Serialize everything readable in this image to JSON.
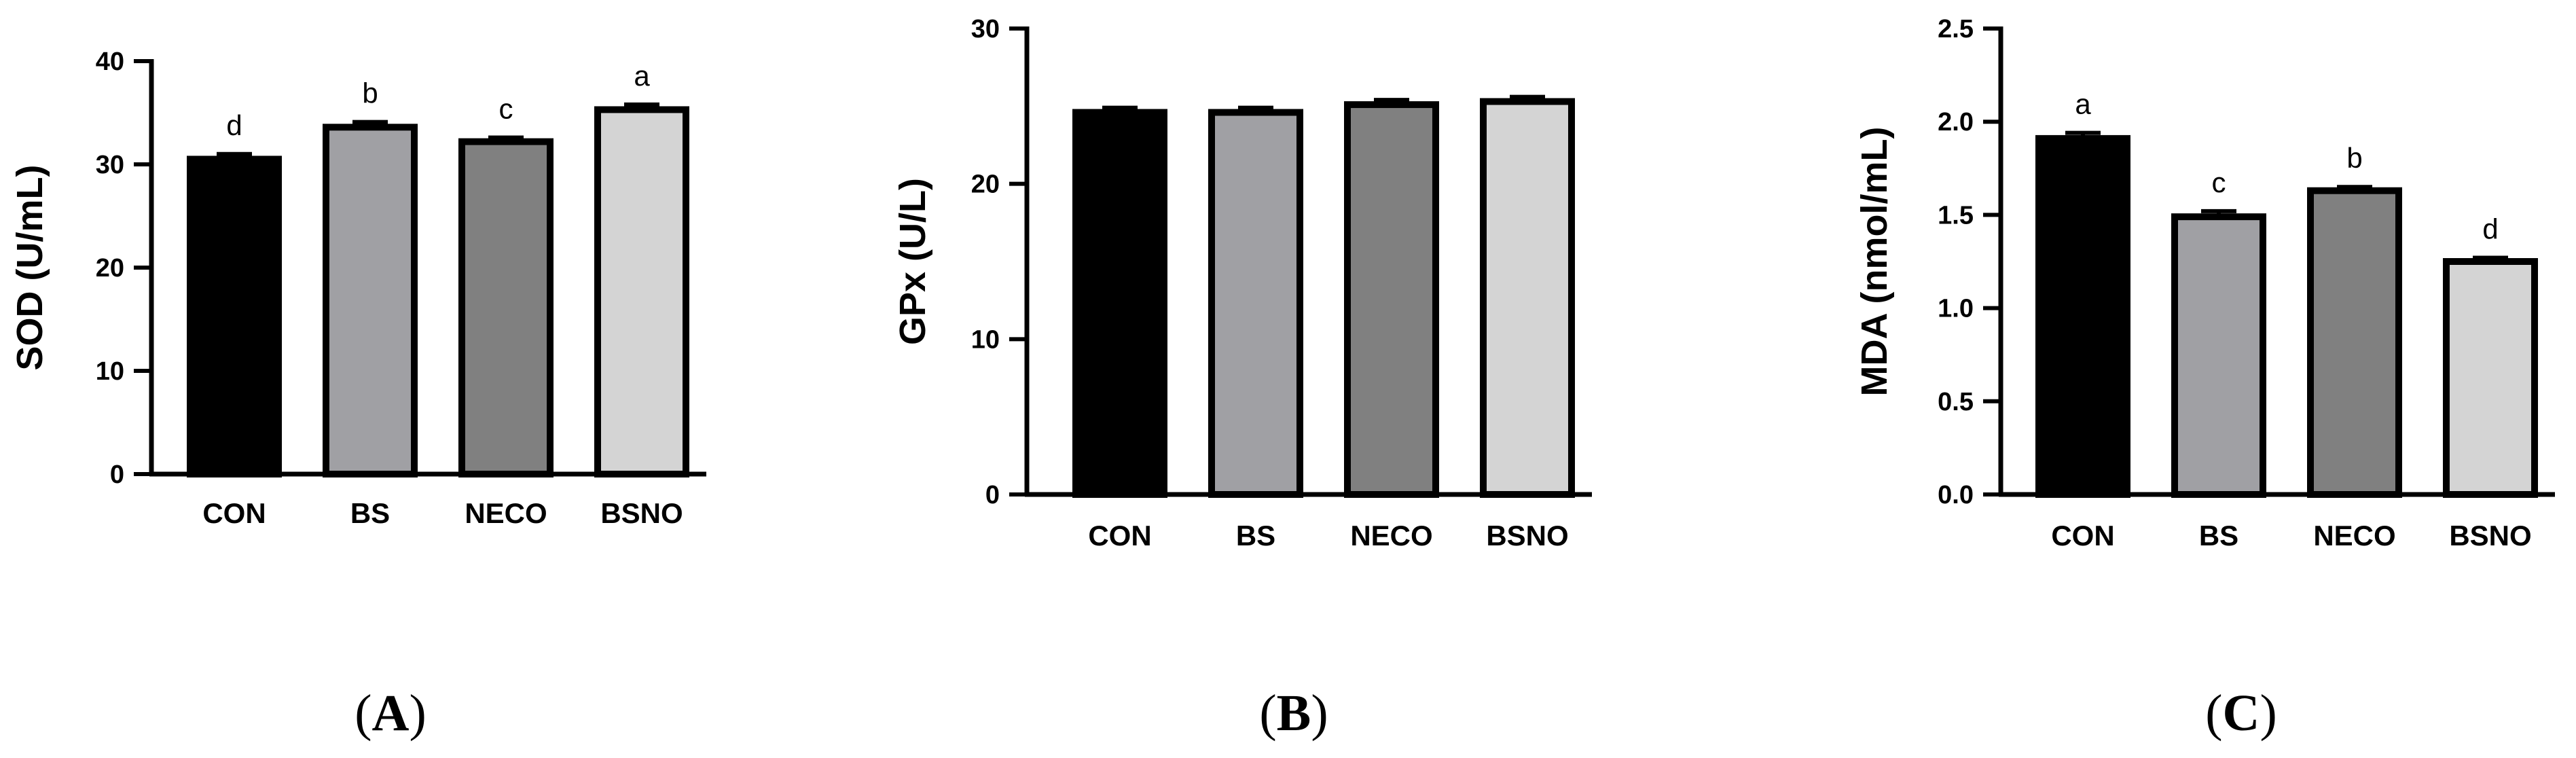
{
  "chart_data": [
    {
      "type": "bar",
      "panel": "A",
      "panel_label": "(A)",
      "categories": [
        "CON",
        "BS",
        "NECO",
        "BSNO"
      ],
      "values": [
        30.5,
        33.6,
        32.2,
        35.3
      ],
      "errors": [
        0.5,
        0.5,
        0.4,
        0.5
      ],
      "significance": [
        "d",
        "b",
        "c",
        "a"
      ],
      "colors": [
        "#000000",
        "#a0a0a4",
        "#808080",
        "#d4d4d4"
      ],
      "xlabel": "",
      "ylabel": "SOD (U/mL)",
      "ylim": [
        0,
        40
      ],
      "yticks": [
        0,
        10,
        20,
        30,
        40
      ],
      "ytick_labels": [
        "0",
        "10",
        "20",
        "30",
        "40"
      ],
      "grid": false
    },
    {
      "type": "bar",
      "panel": "B",
      "panel_label": "(B)",
      "categories": [
        "CON",
        "BS",
        "NECO",
        "BSNO"
      ],
      "values": [
        24.6,
        24.6,
        25.1,
        25.3
      ],
      "errors": [
        0.3,
        0.3,
        0.3,
        0.3
      ],
      "significance": [
        "",
        "",
        "",
        ""
      ],
      "colors": [
        "#000000",
        "#a0a0a4",
        "#808080",
        "#d4d4d4"
      ],
      "xlabel": "",
      "ylabel": "GPx (U/L)",
      "ylim": [
        0,
        30
      ],
      "yticks": [
        0,
        10,
        20,
        30
      ],
      "ytick_labels": [
        "0",
        "10",
        "20",
        "30"
      ],
      "grid": false
    },
    {
      "type": "bar",
      "panel": "C",
      "panel_label": "(C)",
      "categories": [
        "CON",
        "BS",
        "NECO",
        "BSNO"
      ],
      "values": [
        1.91,
        1.49,
        1.63,
        1.25
      ],
      "errors": [
        0.03,
        0.03,
        0.02,
        0.02
      ],
      "significance": [
        "a",
        "c",
        "b",
        "d"
      ],
      "colors": [
        "#000000",
        "#a0a0a4",
        "#808080",
        "#d4d4d4"
      ],
      "xlabel": "",
      "ylabel": "MDA (nmol/mL)",
      "ylim": [
        0,
        2.5
      ],
      "yticks": [
        0,
        0.5,
        1.0,
        1.5,
        2.0,
        2.5
      ],
      "ytick_labels": [
        "0.0",
        "0.5",
        "1.0",
        "1.5",
        "2.0",
        "2.5"
      ],
      "grid": false
    }
  ]
}
